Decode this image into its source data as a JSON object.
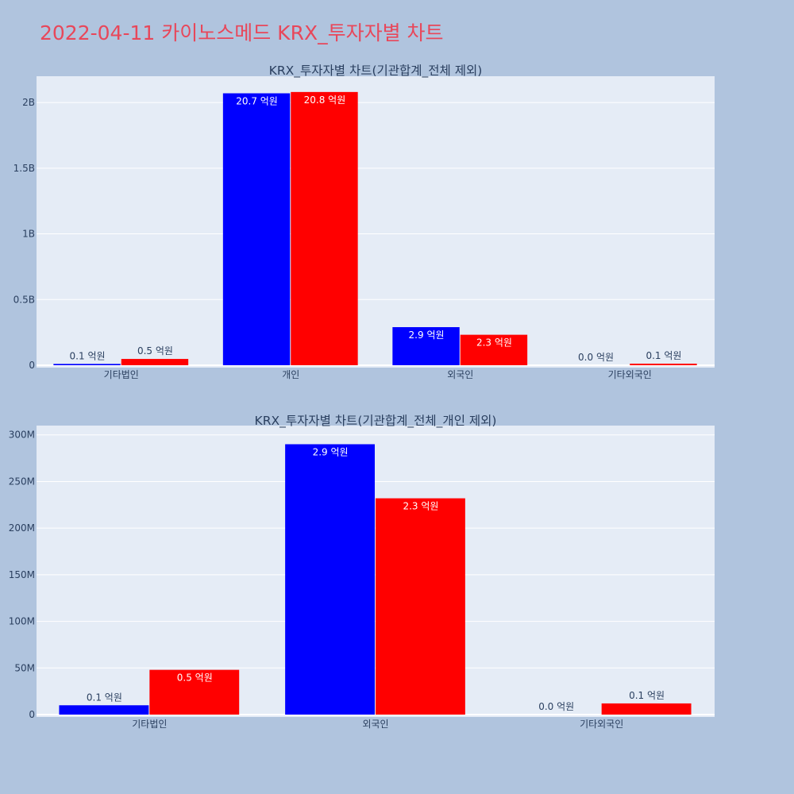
{
  "page": {
    "title": "2022-04-11 카이노스메드 KRX_투자자별 차트"
  },
  "colors": {
    "background": "#b0c4de",
    "plot_background": "#e5ecf6",
    "grid": "#ffffff",
    "title": "#e8475a",
    "text": "#2a3f5f",
    "series_1": "#0000ff",
    "series_2": "#ff0000"
  },
  "chart_data": [
    {
      "type": "bar",
      "title": "KRX_투자자별 차트(기관합계_전체 제외)",
      "categories": [
        "기타법인",
        "개인",
        "외국인",
        "기타외국인"
      ],
      "ylim": [
        0,
        2200000000
      ],
      "yticks": [
        0,
        500000000,
        1000000000,
        1500000000,
        2000000000
      ],
      "yticklabels": [
        "0",
        "0.5B",
        "1B",
        "1.5B",
        "2B"
      ],
      "grid": true,
      "series": [
        {
          "color": "#0000ff",
          "values": [
            10000000,
            2070000000,
            290000000,
            0
          ],
          "labels": [
            "0.1 억원",
            "20.7 억원",
            "2.9 억원",
            "0.0 억원"
          ]
        },
        {
          "color": "#ff0000",
          "values": [
            48000000,
            2080000000,
            232000000,
            12000000
          ],
          "labels": [
            "0.5 억원",
            "20.8 억원",
            "2.3 억원",
            "0.1 억원"
          ]
        }
      ]
    },
    {
      "type": "bar",
      "title": "KRX_투자자별 차트(기관합계_전체_개인 제외)",
      "categories": [
        "기타법인",
        "외국인",
        "기타외국인"
      ],
      "ylim": [
        0,
        310000000
      ],
      "yticks": [
        0,
        50000000,
        100000000,
        150000000,
        200000000,
        250000000,
        300000000
      ],
      "yticklabels": [
        "0",
        "50M",
        "100M",
        "150M",
        "200M",
        "250M",
        "300M"
      ],
      "grid": true,
      "series": [
        {
          "color": "#0000ff",
          "values": [
            10000000,
            290000000,
            0
          ],
          "labels": [
            "0.1 억원",
            "2.9 억원",
            "0.0 억원"
          ]
        },
        {
          "color": "#ff0000",
          "values": [
            48000000,
            232000000,
            12000000
          ],
          "labels": [
            "0.5 억원",
            "2.3 억원",
            "0.1 억원"
          ]
        }
      ]
    }
  ]
}
